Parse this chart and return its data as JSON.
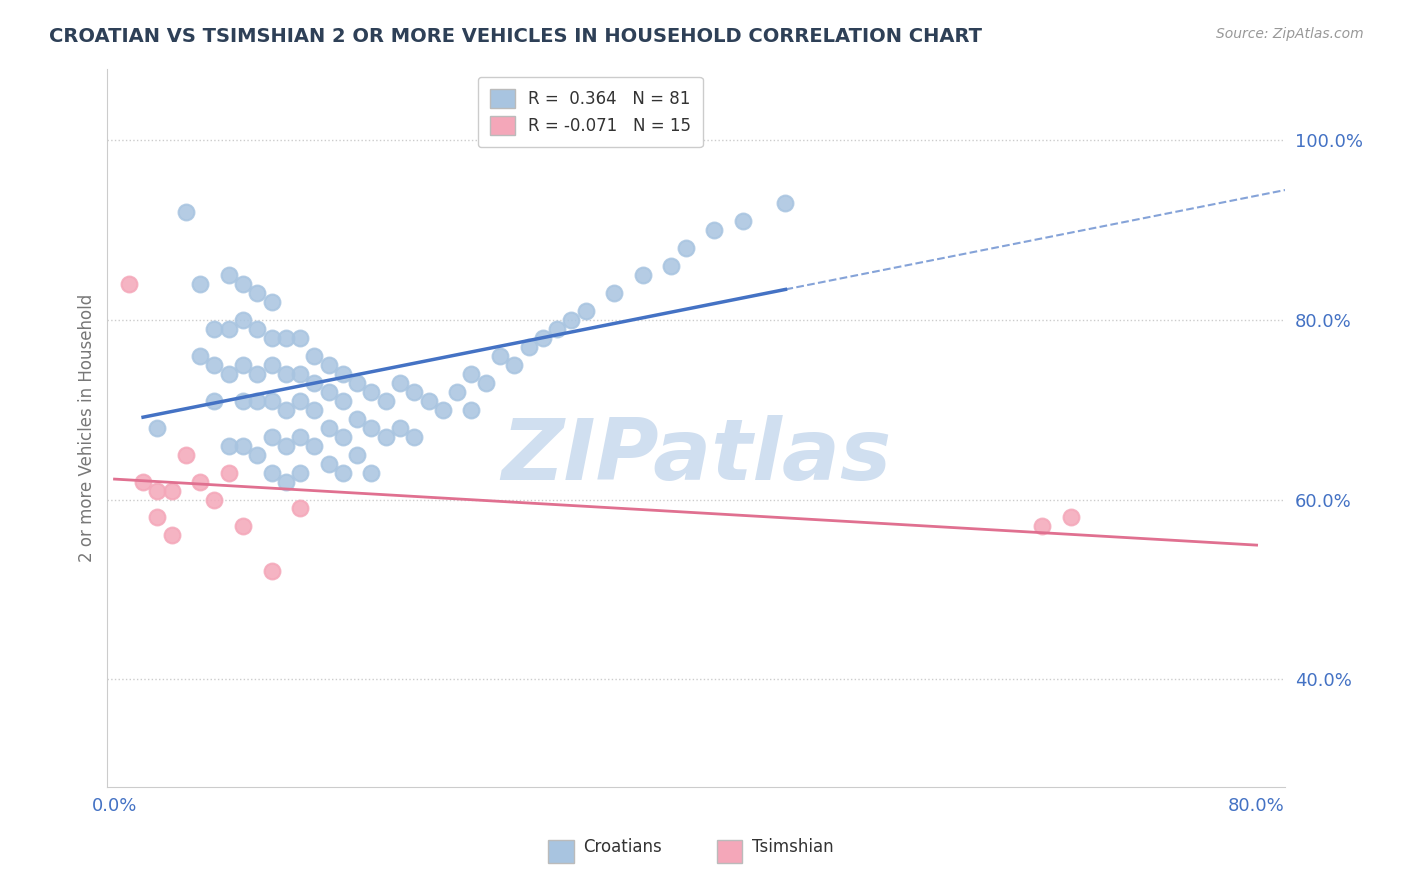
{
  "title": "CROATIAN VS TSIMSHIAN 2 OR MORE VEHICLES IN HOUSEHOLD CORRELATION CHART",
  "source_text": "Source: ZipAtlas.com",
  "ylabel": "2 or more Vehicles in Household",
  "xlim": [
    -0.005,
    0.82
  ],
  "ylim": [
    0.28,
    1.08
  ],
  "xticks": [
    0.0,
    0.1,
    0.2,
    0.3,
    0.4,
    0.5,
    0.6,
    0.7,
    0.8
  ],
  "xticklabels": [
    "0.0%",
    "",
    "",
    "",
    "",
    "",
    "",
    "",
    "80.0%"
  ],
  "yticks": [
    0.4,
    0.6,
    0.8,
    1.0
  ],
  "yticklabels": [
    "40.0%",
    "60.0%",
    "80.0%",
    "100.0%"
  ],
  "legend_label_1": "R =  0.364   N = 81",
  "legend_label_2": "R = -0.071   N = 15",
  "croatian_color": "#a8c4e0",
  "tsimshian_color": "#f4a7b9",
  "croatian_line_color": "#4472c4",
  "tsimshian_line_color": "#e07090",
  "watermark": "ZIPatlas",
  "croatian_x": [
    0.03,
    0.05,
    0.06,
    0.06,
    0.07,
    0.07,
    0.07,
    0.08,
    0.08,
    0.08,
    0.08,
    0.09,
    0.09,
    0.09,
    0.09,
    0.09,
    0.1,
    0.1,
    0.1,
    0.1,
    0.1,
    0.11,
    0.11,
    0.11,
    0.11,
    0.11,
    0.11,
    0.12,
    0.12,
    0.12,
    0.12,
    0.12,
    0.13,
    0.13,
    0.13,
    0.13,
    0.13,
    0.14,
    0.14,
    0.14,
    0.14,
    0.15,
    0.15,
    0.15,
    0.15,
    0.16,
    0.16,
    0.16,
    0.16,
    0.17,
    0.17,
    0.17,
    0.18,
    0.18,
    0.18,
    0.19,
    0.19,
    0.2,
    0.2,
    0.21,
    0.21,
    0.22,
    0.23,
    0.24,
    0.25,
    0.25,
    0.26,
    0.27,
    0.28,
    0.29,
    0.3,
    0.31,
    0.32,
    0.33,
    0.35,
    0.37,
    0.39,
    0.4,
    0.42,
    0.44,
    0.47
  ],
  "croatian_y": [
    0.68,
    0.92,
    0.84,
    0.76,
    0.79,
    0.75,
    0.71,
    0.85,
    0.79,
    0.74,
    0.66,
    0.84,
    0.8,
    0.75,
    0.71,
    0.66,
    0.83,
    0.79,
    0.74,
    0.71,
    0.65,
    0.82,
    0.78,
    0.75,
    0.71,
    0.67,
    0.63,
    0.78,
    0.74,
    0.7,
    0.66,
    0.62,
    0.78,
    0.74,
    0.71,
    0.67,
    0.63,
    0.76,
    0.73,
    0.7,
    0.66,
    0.75,
    0.72,
    0.68,
    0.64,
    0.74,
    0.71,
    0.67,
    0.63,
    0.73,
    0.69,
    0.65,
    0.72,
    0.68,
    0.63,
    0.71,
    0.67,
    0.73,
    0.68,
    0.72,
    0.67,
    0.71,
    0.7,
    0.72,
    0.74,
    0.7,
    0.73,
    0.76,
    0.75,
    0.77,
    0.78,
    0.79,
    0.8,
    0.81,
    0.83,
    0.85,
    0.86,
    0.88,
    0.9,
    0.91,
    0.93
  ],
  "tsimshian_x": [
    0.01,
    0.02,
    0.03,
    0.03,
    0.04,
    0.04,
    0.05,
    0.06,
    0.07,
    0.08,
    0.09,
    0.11,
    0.13,
    0.65,
    0.67
  ],
  "tsimshian_y": [
    0.84,
    0.62,
    0.61,
    0.58,
    0.61,
    0.56,
    0.65,
    0.62,
    0.6,
    0.63,
    0.57,
    0.52,
    0.59,
    0.57,
    0.58
  ],
  "background_color": "#ffffff",
  "grid_color": "#cccccc",
  "title_color": "#2e4057",
  "axis_label_color": "#777777",
  "tick_label_color": "#4472c4",
  "watermark_color": "#d0dff0"
}
